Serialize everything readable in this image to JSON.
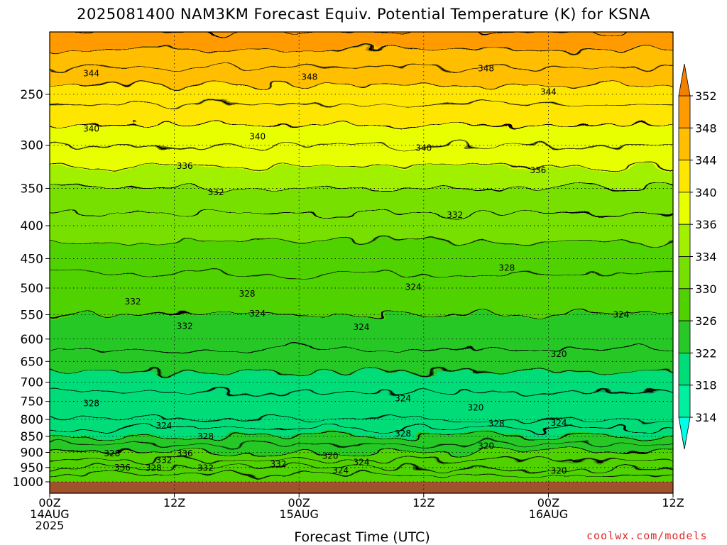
{
  "title": "2025081400 NAM3KM Forecast Equiv. Potential Temperature (K) for KSNA",
  "credit": "coolwx.com/models",
  "chart_data": {
    "type": "heatmap",
    "title": "2025081400 NAM3KM Forecast Equiv. Potential Temperature (K) for KSNA",
    "xlabel": "Forecast Time (UTC)",
    "ylabel": "",
    "x_range_hours": [
      0,
      60
    ],
    "y_range_hpa": [
      1000,
      200
    ],
    "y_scale": "log",
    "y_ticks": [
      250,
      300,
      350,
      400,
      450,
      500,
      550,
      600,
      650,
      700,
      750,
      800,
      850,
      900,
      950,
      1000
    ],
    "x_ticks": [
      {
        "hour": 0,
        "lines": [
          "00Z",
          "14AUG",
          "2025"
        ]
      },
      {
        "hour": 12,
        "lines": [
          "12Z"
        ]
      },
      {
        "hour": 24,
        "lines": [
          "00Z",
          "15AUG"
        ]
      },
      {
        "hour": 36,
        "lines": [
          "12Z"
        ]
      },
      {
        "hour": 48,
        "lines": [
          "00Z",
          "16AUG"
        ]
      },
      {
        "hour": 60,
        "lines": [
          "12Z"
        ]
      }
    ],
    "colorbar": {
      "levels": [
        314,
        318,
        322,
        326,
        330,
        334,
        336,
        340,
        344,
        348,
        352
      ],
      "colors": [
        "#00ffe6",
        "#00f0a0",
        "#00dc78",
        "#28c828",
        "#50d200",
        "#78e000",
        "#a0f000",
        "#e8ff00",
        "#ffe600",
        "#ffbe00",
        "#ff9a00",
        "#f08000"
      ],
      "extend": "both"
    },
    "grid": "dotted",
    "legend": "right colorbar",
    "profile": [
      {
        "p": 1000,
        "theta_e": 326
      },
      {
        "p": 950,
        "theta_e": 330
      },
      {
        "p": 900,
        "theta_e": 326
      },
      {
        "p": 850,
        "theta_e": 322
      },
      {
        "p": 800,
        "theta_e": 318
      },
      {
        "p": 750,
        "theta_e": 319
      },
      {
        "p": 700,
        "theta_e": 321
      },
      {
        "p": 650,
        "theta_e": 323
      },
      {
        "p": 600,
        "theta_e": 325
      },
      {
        "p": 550,
        "theta_e": 326
      },
      {
        "p": 500,
        "theta_e": 327
      },
      {
        "p": 450,
        "theta_e": 329
      },
      {
        "p": 400,
        "theta_e": 331
      },
      {
        "p": 350,
        "theta_e": 334
      },
      {
        "p": 300,
        "theta_e": 338
      },
      {
        "p": 250,
        "theta_e": 343
      },
      {
        "p": 200,
        "theta_e": 350
      }
    ],
    "contour_labels": [
      {
        "text": "344",
        "hour": 4,
        "p": 232
      },
      {
        "text": "348",
        "hour": 25,
        "p": 235
      },
      {
        "text": "348",
        "hour": 42,
        "p": 228
      },
      {
        "text": "344",
        "hour": 48,
        "p": 248
      },
      {
        "text": "340",
        "hour": 4,
        "p": 283
      },
      {
        "text": "340",
        "hour": 20,
        "p": 291
      },
      {
        "text": "340",
        "hour": 36,
        "p": 303
      },
      {
        "text": "336",
        "hour": 13,
        "p": 323
      },
      {
        "text": "336",
        "hour": 47,
        "p": 328
      },
      {
        "text": "332",
        "hour": 16,
        "p": 355
      },
      {
        "text": "332",
        "hour": 39,
        "p": 385
      },
      {
        "text": "328",
        "hour": 44,
        "p": 465
      },
      {
        "text": "324",
        "hour": 35,
        "p": 498
      },
      {
        "text": "332",
        "hour": 8,
        "p": 525
      },
      {
        "text": "328",
        "hour": 19,
        "p": 510
      },
      {
        "text": "324",
        "hour": 20,
        "p": 548
      },
      {
        "text": "332",
        "hour": 13,
        "p": 573
      },
      {
        "text": "324",
        "hour": 30,
        "p": 575
      },
      {
        "text": "324",
        "hour": 55,
        "p": 550
      },
      {
        "text": "320",
        "hour": 49,
        "p": 633
      },
      {
        "text": "324",
        "hour": 34,
        "p": 742
      },
      {
        "text": "328",
        "hour": 4,
        "p": 755
      },
      {
        "text": "320",
        "hour": 41,
        "p": 767
      },
      {
        "text": "328",
        "hour": 43,
        "p": 812
      },
      {
        "text": "324",
        "hour": 49,
        "p": 810
      },
      {
        "text": "324",
        "hour": 11,
        "p": 818
      },
      {
        "text": "328",
        "hour": 15,
        "p": 850
      },
      {
        "text": "328",
        "hour": 34,
        "p": 841
      },
      {
        "text": "320",
        "hour": 42,
        "p": 880
      },
      {
        "text": "336",
        "hour": 13,
        "p": 903
      },
      {
        "text": "328",
        "hour": 6,
        "p": 903
      },
      {
        "text": "332",
        "hour": 11,
        "p": 925
      },
      {
        "text": "320",
        "hour": 27,
        "p": 912
      },
      {
        "text": "324",
        "hour": 30,
        "p": 933
      },
      {
        "text": "332",
        "hour": 22,
        "p": 938
      },
      {
        "text": "336",
        "hour": 7,
        "p": 950
      },
      {
        "text": "328",
        "hour": 10,
        "p": 952
      },
      {
        "text": "332",
        "hour": 15,
        "p": 952
      },
      {
        "text": "324",
        "hour": 28,
        "p": 960
      },
      {
        "text": "320",
        "hour": 49,
        "p": 962
      }
    ]
  }
}
